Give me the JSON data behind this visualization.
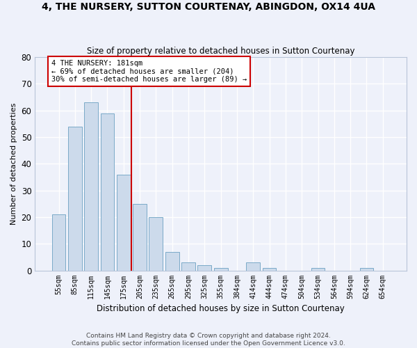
{
  "title": "4, THE NURSERY, SUTTON COURTENAY, ABINGDON, OX14 4UA",
  "subtitle": "Size of property relative to detached houses in Sutton Courtenay",
  "xlabel": "Distribution of detached houses by size in Sutton Courtenay",
  "ylabel": "Number of detached properties",
  "categories": [
    "55sqm",
    "85sqm",
    "115sqm",
    "145sqm",
    "175sqm",
    "205sqm",
    "235sqm",
    "265sqm",
    "295sqm",
    "325sqm",
    "355sqm",
    "384sqm",
    "414sqm",
    "444sqm",
    "474sqm",
    "504sqm",
    "534sqm",
    "564sqm",
    "594sqm",
    "624sqm",
    "654sqm"
  ],
  "values": [
    21,
    54,
    63,
    59,
    36,
    25,
    20,
    7,
    3,
    2,
    1,
    0,
    3,
    1,
    0,
    0,
    1,
    0,
    0,
    1,
    0
  ],
  "bar_color": "#ccdaeb",
  "bar_edge_color": "#7aaac8",
  "background_color": "#eef1fa",
  "grid_color": "#ffffff",
  "ylim": [
    0,
    80
  ],
  "yticks": [
    0,
    10,
    20,
    30,
    40,
    50,
    60,
    70,
    80
  ],
  "ref_line_x": 4.5,
  "ref_line_color": "#cc0000",
  "annotation_text": "4 THE NURSERY: 181sqm\n← 69% of detached houses are smaller (204)\n30% of semi-detached houses are larger (89) →",
  "annotation_box_color": "#ffffff",
  "annotation_box_edge": "#cc0000",
  "footer1": "Contains HM Land Registry data © Crown copyright and database right 2024.",
  "footer2": "Contains public sector information licensed under the Open Government Licence v3.0."
}
